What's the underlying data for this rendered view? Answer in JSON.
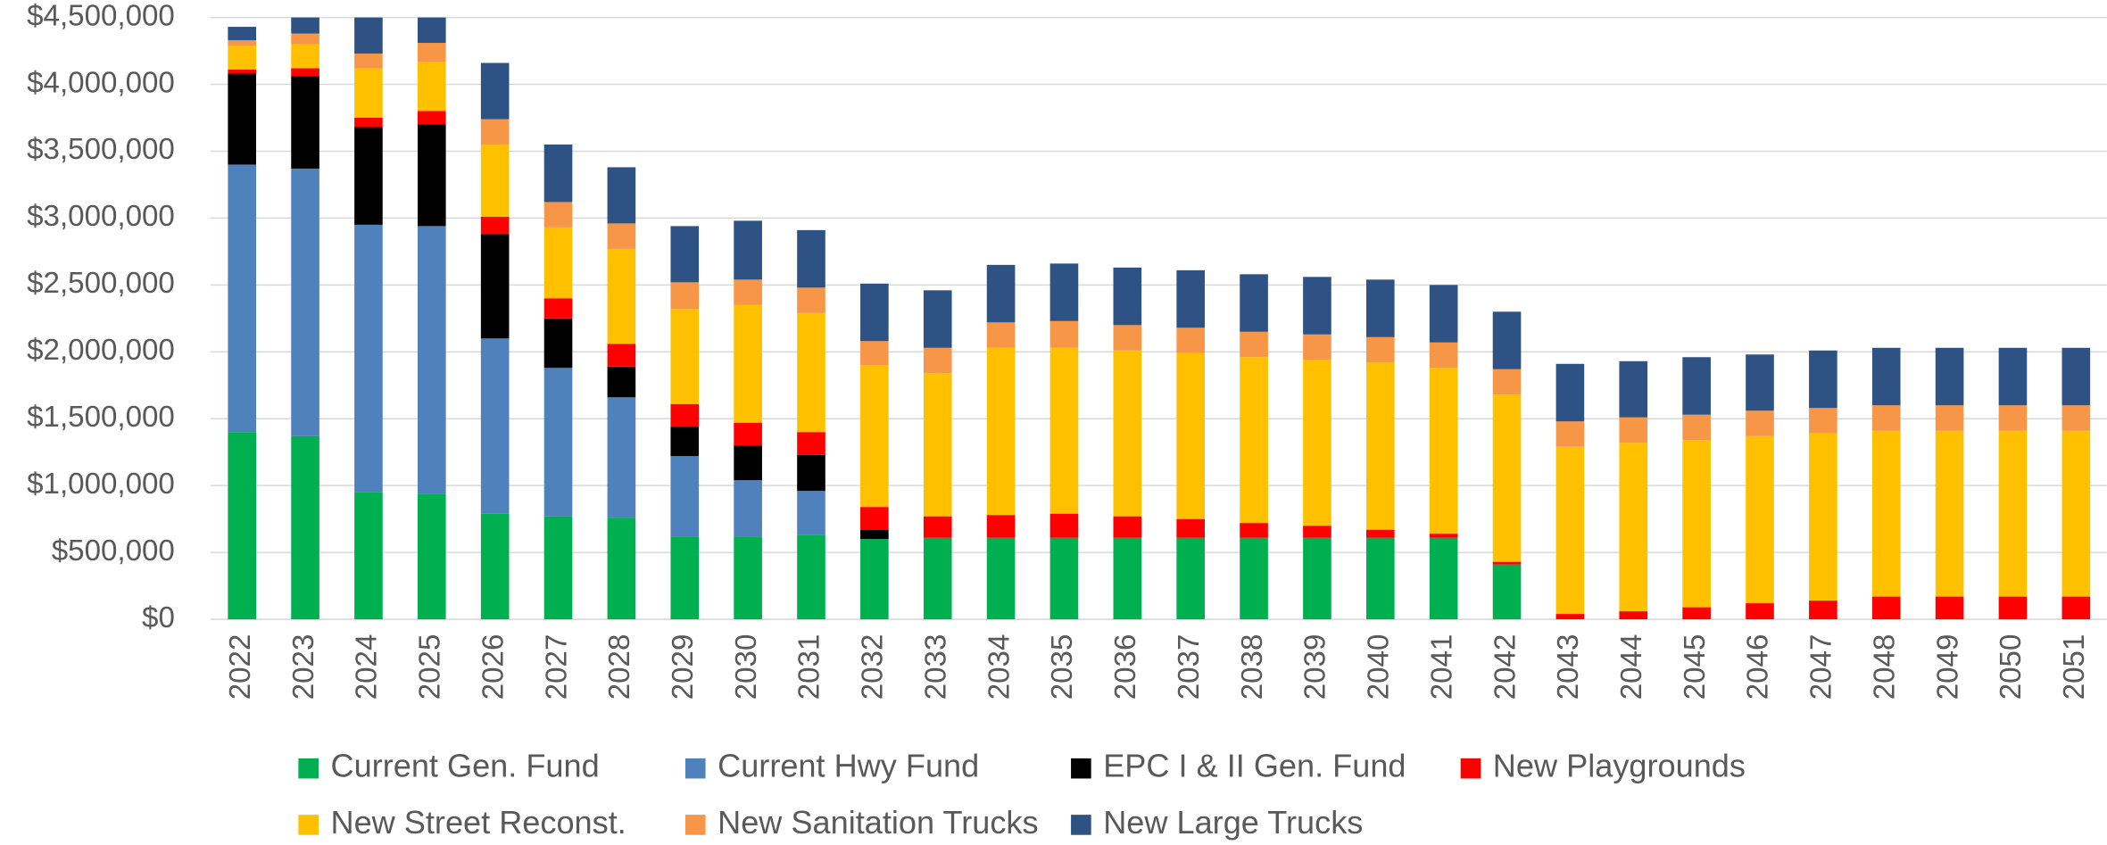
{
  "chart_data": {
    "type": "bar",
    "stacked": true,
    "categories": [
      "2022",
      "2023",
      "2024",
      "2025",
      "2026",
      "2027",
      "2028",
      "2029",
      "2030",
      "2031",
      "2032",
      "2033",
      "2034",
      "2035",
      "2036",
      "2037",
      "2038",
      "2039",
      "2040",
      "2041",
      "2042",
      "2043",
      "2044",
      "2045",
      "2046",
      "2047",
      "2048",
      "2049",
      "2050",
      "2051"
    ],
    "series": [
      {
        "name": "Current Gen. Fund",
        "color": "#00b050",
        "values": [
          1400000,
          1370000,
          950000,
          940000,
          790000,
          770000,
          760000,
          620000,
          620000,
          630000,
          600000,
          610000,
          610000,
          610000,
          610000,
          610000,
          610000,
          610000,
          610000,
          610000,
          410000,
          0,
          0,
          0,
          0,
          0,
          0,
          0,
          0,
          0
        ]
      },
      {
        "name": "Current Hwy Fund",
        "color": "#4f81bd",
        "values": [
          2000000,
          2000000,
          2000000,
          2000000,
          1310000,
          1110000,
          900000,
          600000,
          420000,
          330000,
          0,
          0,
          0,
          0,
          0,
          0,
          0,
          0,
          0,
          0,
          0,
          0,
          0,
          0,
          0,
          0,
          0,
          0,
          0,
          0
        ]
      },
      {
        "name": "EPC I & II Gen. Fund",
        "color": "#000000",
        "values": [
          680000,
          690000,
          730000,
          760000,
          780000,
          370000,
          230000,
          220000,
          260000,
          270000,
          70000,
          0,
          0,
          0,
          0,
          0,
          0,
          0,
          0,
          0,
          0,
          0,
          0,
          0,
          0,
          0,
          0,
          0,
          0,
          0
        ]
      },
      {
        "name": "New Playgrounds",
        "color": "#ff0000",
        "values": [
          30000,
          60000,
          70000,
          100000,
          130000,
          150000,
          170000,
          170000,
          170000,
          170000,
          170000,
          160000,
          170000,
          180000,
          160000,
          140000,
          110000,
          90000,
          60000,
          30000,
          20000,
          40000,
          60000,
          90000,
          120000,
          140000,
          170000,
          170000,
          170000,
          170000
        ]
      },
      {
        "name": "New Street Reconst.",
        "color": "#ffc000",
        "values": [
          180000,
          180000,
          370000,
          370000,
          540000,
          530000,
          710000,
          710000,
          880000,
          890000,
          1060000,
          1070000,
          1250000,
          1240000,
          1240000,
          1240000,
          1240000,
          1240000,
          1250000,
          1240000,
          1250000,
          1250000,
          1260000,
          1250000,
          1250000,
          1250000,
          1240000,
          1240000,
          1240000,
          1240000
        ]
      },
      {
        "name": "New Sanitation Trucks",
        "color": "#f79646",
        "values": [
          40000,
          80000,
          110000,
          140000,
          190000,
          190000,
          190000,
          200000,
          190000,
          190000,
          180000,
          190000,
          190000,
          200000,
          190000,
          190000,
          190000,
          190000,
          190000,
          190000,
          190000,
          190000,
          190000,
          190000,
          190000,
          190000,
          190000,
          190000,
          190000,
          190000
        ]
      },
      {
        "name": "New Large Trucks",
        "color": "#2e5283",
        "values": [
          100000,
          150000,
          300000,
          300000,
          420000,
          430000,
          420000,
          420000,
          440000,
          430000,
          430000,
          430000,
          430000,
          430000,
          430000,
          430000,
          430000,
          430000,
          430000,
          430000,
          430000,
          430000,
          420000,
          430000,
          420000,
          430000,
          430000,
          430000,
          430000,
          430000
        ]
      }
    ],
    "ylim": [
      0,
      4500000
    ],
    "yticks": [
      {
        "value": 0,
        "label": "$0"
      },
      {
        "value": 500000,
        "label": "$500,000"
      },
      {
        "value": 1000000,
        "label": "$1,000,000"
      },
      {
        "value": 1500000,
        "label": "$1,500,000"
      },
      {
        "value": 2000000,
        "label": "$2,000,000"
      },
      {
        "value": 2500000,
        "label": "$2,500,000"
      },
      {
        "value": 3000000,
        "label": "$3,000,000"
      },
      {
        "value": 3500000,
        "label": "$3,500,000"
      },
      {
        "value": 4000000,
        "label": "$4,000,000"
      },
      {
        "value": 4500000,
        "label": "$4,500,000"
      }
    ],
    "grid": true,
    "legend": "bottom"
  }
}
